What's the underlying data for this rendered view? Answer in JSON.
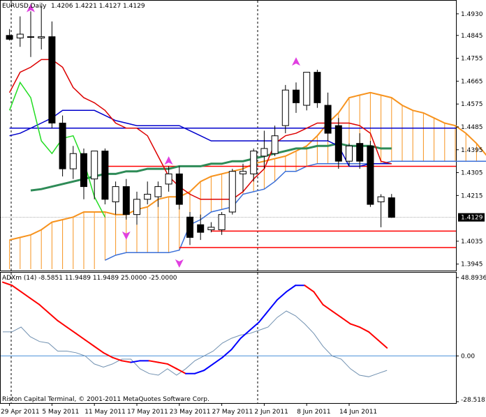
{
  "window": {
    "symbol": "EURUSD,Daily",
    "ohlc": "1.4206 1.4221 1.4127 1.4129",
    "copyright": "Riston Capital Terminal, © 2001-2011 MetaQuotes Software Corp."
  },
  "chart_data": {
    "type": "candlestick",
    "price_axis": {
      "ticks": [
        "1.4930",
        "1.4845",
        "1.4755",
        "1.4665",
        "1.4575",
        "1.4485",
        "1.4395",
        "1.4305",
        "1.4215",
        "1.4129",
        "1.4035",
        "1.3945"
      ],
      "tick_values": [
        1.493,
        1.4845,
        1.4755,
        1.4665,
        1.4575,
        1.4485,
        1.4395,
        1.4305,
        1.4215,
        1.4129,
        1.4035,
        1.3945
      ],
      "current_price": "1.4129",
      "range": [
        1.3925,
        1.4968
      ]
    },
    "x_axis": {
      "labels": [
        "29 Apr 2011",
        "5 May 2011",
        "11 May 2011",
        "17 May 2011",
        "23 May 2011",
        "27 May 2011",
        "2 Jun 2011",
        "8 Jun 2011",
        "14 Jun 2011"
      ],
      "label_bar_index": [
        0,
        4,
        8,
        12,
        16,
        20,
        24,
        28,
        32
      ]
    },
    "candles": [
      {
        "o": 1.4845,
        "h": 1.487,
        "l": 1.4825,
        "c": 1.483
      },
      {
        "o": 1.4835,
        "h": 1.492,
        "l": 1.48,
        "c": 1.485
      },
      {
        "o": 1.484,
        "h": 1.494,
        "l": 1.476,
        "c": 1.484
      },
      {
        "o": 1.4835,
        "h": 1.496,
        "l": 1.479,
        "c": 1.484
      },
      {
        "o": 1.484,
        "h": 1.49,
        "l": 1.448,
        "c": 1.45
      },
      {
        "o": 1.45,
        "h": 1.453,
        "l": 1.429,
        "c": 1.432
      },
      {
        "o": 1.432,
        "h": 1.441,
        "l": 1.428,
        "c": 1.438
      },
      {
        "o": 1.438,
        "h": 1.44,
        "l": 1.42,
        "c": 1.425
      },
      {
        "o": 1.428,
        "h": 1.439,
        "l": 1.42,
        "c": 1.439
      },
      {
        "o": 1.439,
        "h": 1.44,
        "l": 1.418,
        "c": 1.42
      },
      {
        "o": 1.419,
        "h": 1.427,
        "l": 1.414,
        "c": 1.425
      },
      {
        "o": 1.425,
        "h": 1.428,
        "l": 1.412,
        "c": 1.414
      },
      {
        "o": 1.414,
        "h": 1.423,
        "l": 1.41,
        "c": 1.42
      },
      {
        "o": 1.42,
        "h": 1.427,
        "l": 1.418,
        "c": 1.422
      },
      {
        "o": 1.421,
        "h": 1.427,
        "l": 1.417,
        "c": 1.425
      },
      {
        "o": 1.426,
        "h": 1.433,
        "l": 1.423,
        "c": 1.43
      },
      {
        "o": 1.43,
        "h": 1.433,
        "l": 1.416,
        "c": 1.418
      },
      {
        "o": 1.413,
        "h": 1.415,
        "l": 1.402,
        "c": 1.405
      },
      {
        "o": 1.41,
        "h": 1.414,
        "l": 1.404,
        "c": 1.407
      },
      {
        "o": 1.408,
        "h": 1.411,
        "l": 1.407,
        "c": 1.409
      },
      {
        "o": 1.408,
        "h": 1.415,
        "l": 1.406,
        "c": 1.414
      },
      {
        "o": 1.415,
        "h": 1.432,
        "l": 1.414,
        "c": 1.431
      },
      {
        "o": 1.43,
        "h": 1.434,
        "l": 1.423,
        "c": 1.431
      },
      {
        "o": 1.43,
        "h": 1.44,
        "l": 1.427,
        "c": 1.439
      },
      {
        "o": 1.437,
        "h": 1.447,
        "l": 1.432,
        "c": 1.44
      },
      {
        "o": 1.438,
        "h": 1.449,
        "l": 1.437,
        "c": 1.445
      },
      {
        "o": 1.449,
        "h": 1.465,
        "l": 1.446,
        "c": 1.463
      },
      {
        "o": 1.463,
        "h": 1.466,
        "l": 1.454,
        "c": 1.458
      },
      {
        "o": 1.457,
        "h": 1.47,
        "l": 1.455,
        "c": 1.47
      },
      {
        "o": 1.47,
        "h": 1.471,
        "l": 1.456,
        "c": 1.458
      },
      {
        "o": 1.457,
        "h": 1.462,
        "l": 1.443,
        "c": 1.446
      },
      {
        "o": 1.449,
        "h": 1.452,
        "l": 1.432,
        "c": 1.435
      },
      {
        "o": 1.435,
        "h": 1.442,
        "l": 1.433,
        "c": 1.441
      },
      {
        "o": 1.442,
        "h": 1.446,
        "l": 1.432,
        "c": 1.435
      },
      {
        "o": 1.441,
        "h": 1.443,
        "l": 1.417,
        "c": 1.418
      },
      {
        "o": 1.419,
        "h": 1.422,
        "l": 1.409,
        "c": 1.421
      },
      {
        "o": 1.4206,
        "h": 1.4221,
        "l": 1.4127,
        "c": 1.4129
      }
    ],
    "ichimoku": {
      "tenkan_sen_red": [
        1.462,
        1.47,
        1.472,
        1.475,
        1.475,
        1.472,
        1.464,
        1.46,
        1.458,
        1.455,
        1.45,
        1.448,
        1.448,
        1.445,
        1.437,
        1.429,
        1.425,
        1.422,
        1.42,
        1.42,
        1.42,
        1.42,
        1.423,
        1.428,
        1.432,
        1.442,
        1.445,
        1.446,
        1.448,
        1.45,
        1.45,
        1.45,
        1.45,
        1.449,
        1.446,
        1.435,
        1.434
      ],
      "kijun_sen_blue": [
        1.445,
        1.446,
        1.448,
        1.45,
        1.452,
        1.455,
        1.455,
        1.455,
        1.455,
        1.453,
        1.451,
        1.45,
        1.449,
        1.449,
        1.449,
        1.449,
        1.449,
        1.447,
        1.445,
        1.443,
        1.443,
        1.443,
        1.443,
        1.443,
        1.443,
        1.443,
        1.443,
        1.443,
        1.443,
        1.443,
        1.443,
        1.441,
        1.433,
        1.433,
        1.434,
        1.434,
        1.434
      ],
      "chikou_span_green": [
        1.455,
        1.466,
        1.46,
        1.443,
        1.438,
        1.444,
        1.445,
        1.435,
        1.421,
        1.413
      ],
      "senkou_span_a_orange": [
        1.404,
        1.405,
        1.406,
        1.408,
        1.411,
        1.412,
        1.413,
        1.415,
        1.415,
        1.415,
        1.414,
        1.414,
        1.416,
        1.417,
        1.42,
        1.421,
        1.421,
        1.423,
        1.427,
        1.429,
        1.43,
        1.431,
        1.432,
        1.434,
        1.435,
        1.436,
        1.437,
        1.439,
        1.441,
        1.445,
        1.45,
        1.454,
        1.46,
        1.461,
        1.462,
        1.461,
        1.46,
        1.457,
        1.455,
        1.454,
        1.452,
        1.45,
        1.449,
        1.446,
        1.442,
        1.437,
        1.436
      ],
      "senkou_span_b_blue": [
        1.396,
        1.398,
        1.399,
        1.399,
        1.399,
        1.399,
        1.399,
        1.4,
        1.41,
        1.412,
        1.415,
        1.416,
        1.417,
        1.422,
        1.423,
        1.424,
        1.427,
        1.431,
        1.431,
        1.433,
        1.434,
        1.434,
        1.434,
        1.434,
        1.434,
        1.434,
        1.434,
        1.435,
        1.435,
        1.435,
        1.435,
        1.435,
        1.435,
        1.435,
        1.435,
        1.435,
        1.435,
        1.435
      ],
      "span_b_offset": 9
    },
    "moving_average_green": [
      1.4235,
      1.424,
      1.425,
      1.426,
      1.427,
      1.428,
      1.429,
      1.43,
      1.43,
      1.431,
      1.431,
      1.432,
      1.432,
      1.432,
      1.433,
      1.433,
      1.433,
      1.434,
      1.434,
      1.435,
      1.435,
      1.436,
      1.437,
      1.438,
      1.439,
      1.44,
      1.44,
      1.441,
      1.441,
      1.442,
      1.441,
      1.441,
      1.441,
      1.44,
      1.44
    ],
    "ma_start_index": 0,
    "level_lines": [
      {
        "price": 1.433,
        "from_bar": 9,
        "color": "#ff0000"
      },
      {
        "price": 1.4075,
        "from_bar": 19,
        "color": "#ff0000"
      },
      {
        "price": 1.401,
        "from_bar": 16,
        "color": "#ff0000"
      },
      {
        "price": 1.448,
        "from_bar": 0,
        "color": "#0000cc"
      }
    ],
    "arrows": [
      {
        "bar": 2,
        "price": 1.495,
        "dir": "up"
      },
      {
        "bar": 15,
        "price": 1.435,
        "dir": "up"
      },
      {
        "bar": 27,
        "price": 1.474,
        "dir": "up"
      },
      {
        "bar": 11,
        "price": 1.406,
        "dir": "down"
      },
      {
        "bar": 16,
        "price": 1.395,
        "dir": "down"
      }
    ],
    "indicator": {
      "label": "ADXm (14) -8.5851 11.9489 11.9489 25.0000 -25.0000",
      "ticks": [
        "48.8936",
        "0.00",
        "-28.5181"
      ],
      "tick_values": [
        48.8936,
        0.0,
        -28.5181
      ],
      "range": [
        -28.5181,
        48.8936
      ],
      "zero_line": 0.0,
      "line_red_blue": [
        46,
        44,
        40,
        36,
        32,
        27,
        22,
        18,
        14,
        10,
        6,
        2,
        -1,
        -3,
        -4,
        -3,
        -3,
        -4,
        -5,
        -8,
        -11,
        -11,
        -9,
        -5,
        -1,
        4,
        11,
        16,
        21,
        28,
        35,
        40,
        44,
        44,
        40,
        32,
        28,
        24,
        20,
        18,
        15,
        10,
        5
      ],
      "line_up_color": "#0000ff",
      "line_down_color": "#ff0000",
      "line_gray": [
        15,
        15,
        18,
        12,
        9,
        8,
        3,
        3,
        2,
        0,
        -5,
        -7,
        -5,
        -2,
        -2,
        -8,
        -11,
        -12,
        -8,
        -12,
        -8,
        -3,
        0,
        3,
        8,
        11,
        13,
        14,
        16,
        18,
        24,
        28,
        25,
        20,
        14,
        6,
        0,
        -2,
        -8,
        -12,
        -13,
        -11,
        -9
      ]
    }
  }
}
